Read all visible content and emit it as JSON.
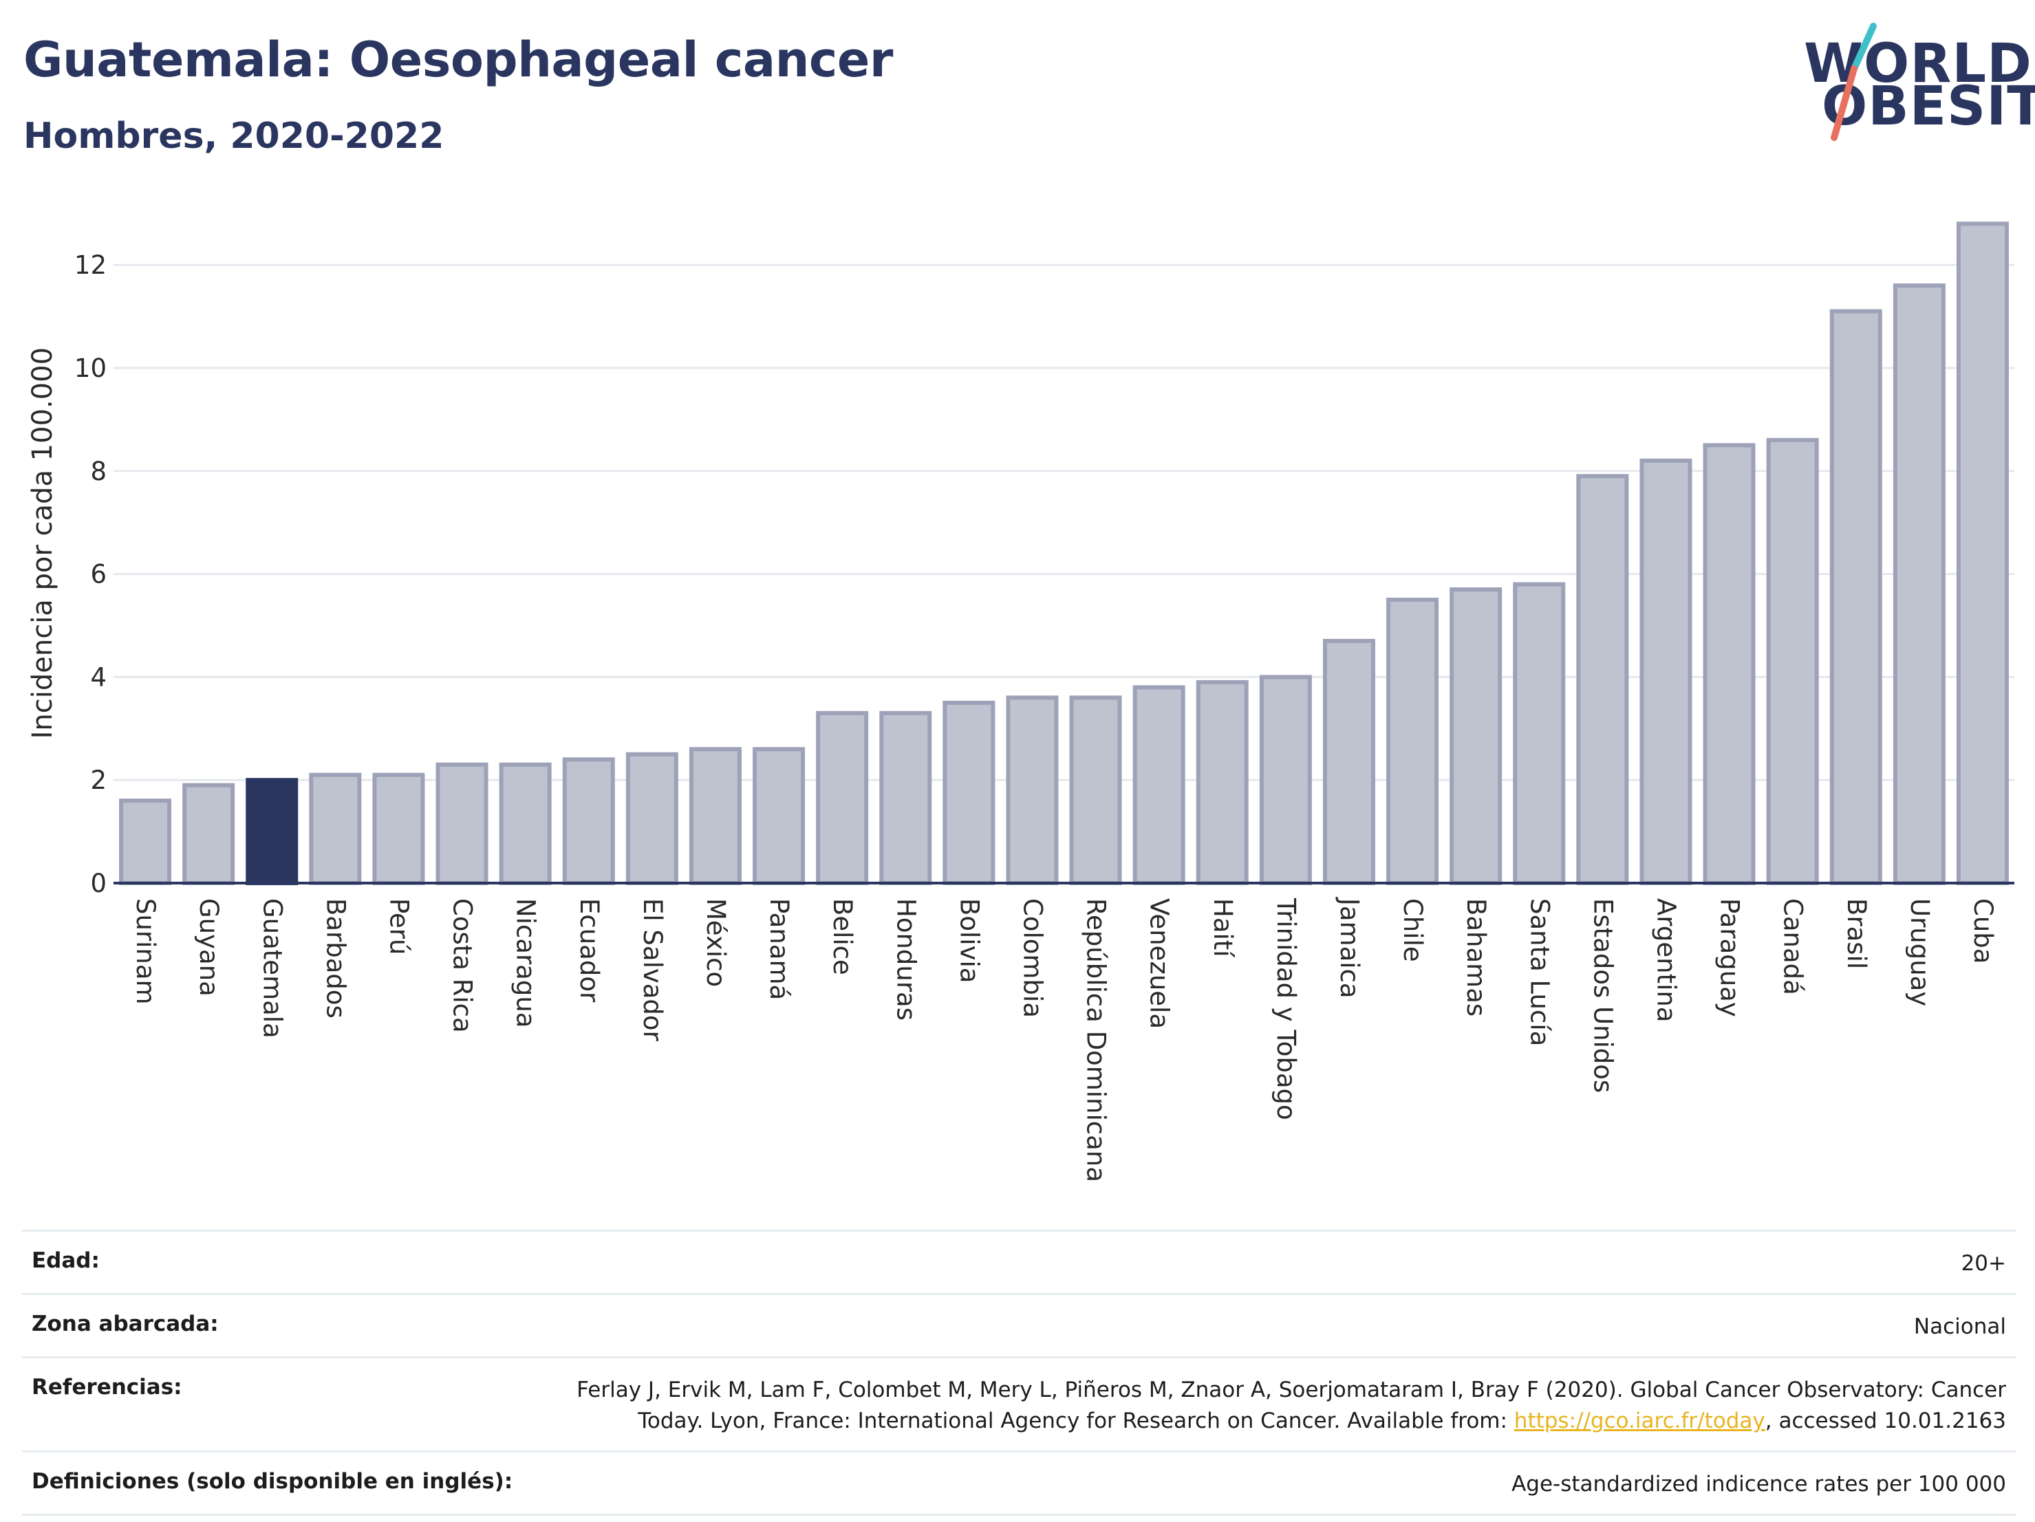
{
  "header": {
    "title": "Guatemala: Oesophageal cancer",
    "subtitle": "Hombres, 2020-2022"
  },
  "logo": {
    "line1": "WORLD",
    "line2": "OBESITY",
    "accent_colors": [
      "#3fbfc7",
      "#e8705e"
    ]
  },
  "colors": {
    "highlight_bar": "#2b3660",
    "bar_fill": "#bfc3d0",
    "bar_stroke": "#9da2b8",
    "grid": "#e6e8ee",
    "axis": "#2b3660",
    "link": "#e8b421"
  },
  "chart_data": {
    "type": "bar",
    "ylabel": "Incidencia por cada 100.000",
    "ylim": [
      0,
      13
    ],
    "yticks": [
      0,
      2,
      4,
      6,
      8,
      10,
      12
    ],
    "grid": true,
    "highlight": "Guatemala",
    "categories": [
      "Surinam",
      "Guyana",
      "Guatemala",
      "Barbados",
      "Perú",
      "Costa Rica",
      "Nicaragua",
      "Ecuador",
      "El Salvador",
      "México",
      "Panamá",
      "Belice",
      "Honduras",
      "Bolivia",
      "Colombia",
      "República Dominicana",
      "Venezuela",
      "Haití",
      "Trinidad y Tobago",
      "Jamaica",
      "Chile",
      "Bahamas",
      "Santa Lucía",
      "Estados Unidos",
      "Argentina",
      "Paraguay",
      "Canadá",
      "Brasil",
      "Uruguay",
      "Cuba"
    ],
    "values": [
      1.6,
      1.9,
      2.0,
      2.1,
      2.1,
      2.3,
      2.3,
      2.4,
      2.5,
      2.6,
      2.6,
      3.3,
      3.3,
      3.5,
      3.6,
      3.6,
      3.8,
      3.9,
      4.0,
      4.7,
      5.5,
      5.7,
      5.8,
      7.9,
      8.2,
      8.5,
      8.6,
      11.1,
      11.6,
      12.8
    ]
  },
  "details": [
    {
      "label": "Edad:",
      "value": "20+"
    },
    {
      "label": "Zona abarcada:",
      "value": "Nacional"
    },
    {
      "label": "Referencias:",
      "value_prefix": "Ferlay J, Ervik M, Lam F, Colombet M, Mery L, Piñeros M, Znaor A, Soerjomataram I, Bray F (2020). Global Cancer Observatory: Cancer Today. Lyon, France: International Agency for Research on Cancer. Available from: ",
      "link": "https://gco.iarc.fr/today",
      "value_suffix": ", accessed 10.01.2163"
    },
    {
      "label": "Definiciones (solo disponible en inglés):",
      "value": "Age-standardized indicence rates per 100 000"
    }
  ]
}
